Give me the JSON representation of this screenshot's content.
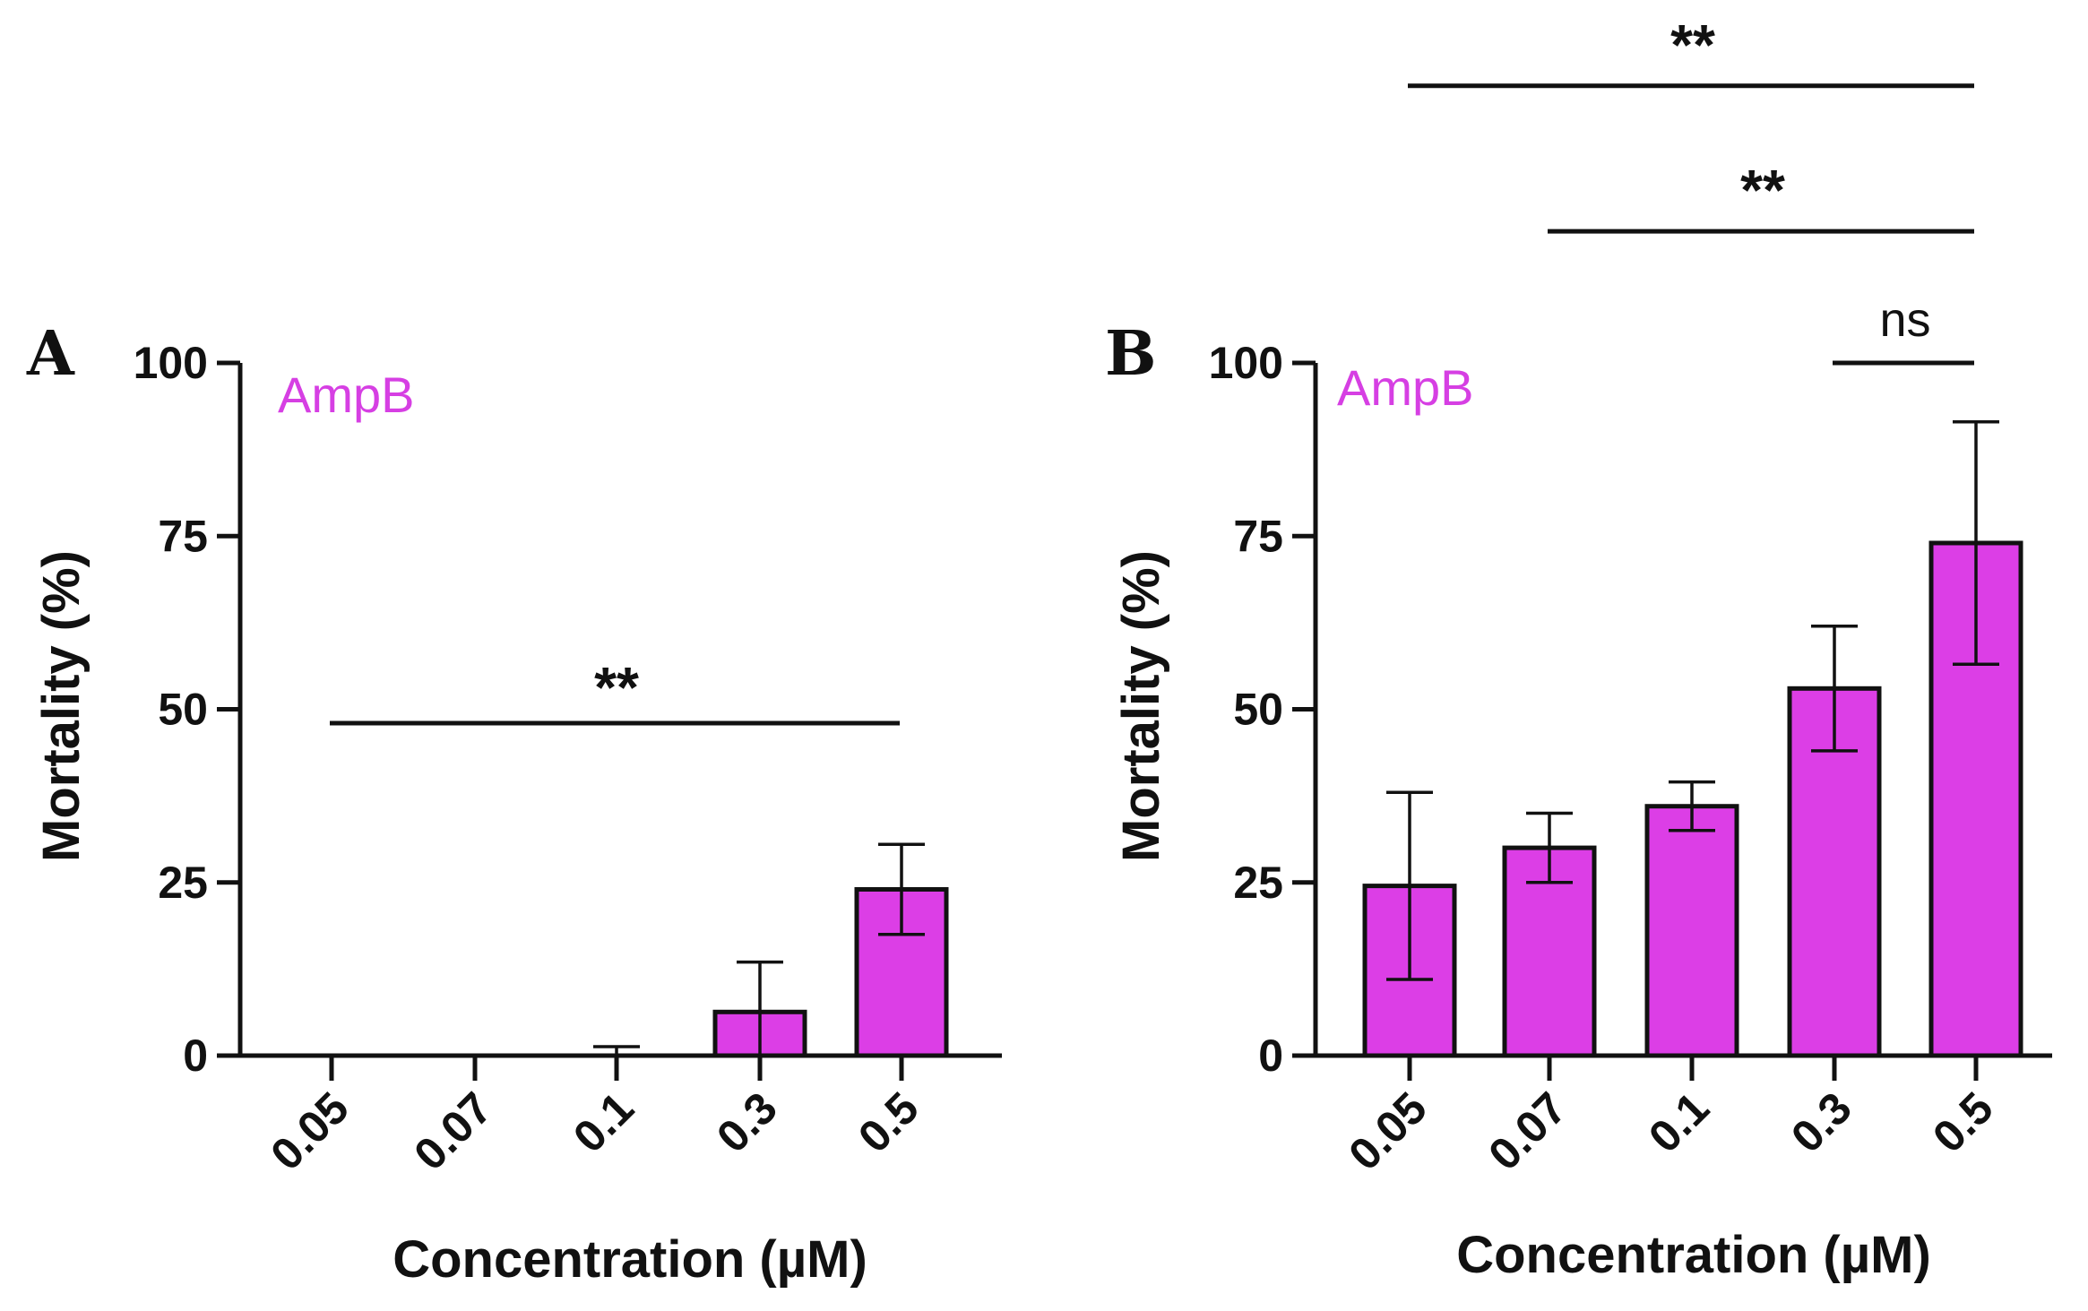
{
  "colors": {
    "bar": "#dc3ee6",
    "label": "#d63fe3",
    "ink": "#111111"
  },
  "chart_data": [
    {
      "panel": "A",
      "type": "bar",
      "series_label": "AmpB",
      "title": "",
      "xlabel": "Concentration (µM)",
      "ylabel": "Mortality (%)",
      "ylim": [
        0,
        100
      ],
      "yticks": [
        "0",
        "25",
        "50",
        "75",
        "100"
      ],
      "categories": [
        "0.05",
        "0.07",
        "0.1",
        "0.3",
        "0.5"
      ],
      "values": [
        0,
        0,
        0,
        6.3,
        24.0
      ],
      "errors": [
        0,
        0,
        1.3,
        7.2,
        6.5
      ],
      "significance": [
        {
          "from": "0.05",
          "to": "0.5",
          "level": 48,
          "label": "**"
        }
      ]
    },
    {
      "panel": "B",
      "type": "bar",
      "series_label": "AmpB",
      "title": "",
      "xlabel": "Concentration (µM)",
      "ylabel": "Mortality (%)",
      "ylim": [
        0,
        100
      ],
      "yticks": [
        "0",
        "25",
        "50",
        "75",
        "100"
      ],
      "categories": [
        "0.05",
        "0.07",
        "0.1",
        "0.3",
        "0.5"
      ],
      "values": [
        24.5,
        30.0,
        36.0,
        53.0,
        74.0
      ],
      "errors": [
        13.5,
        5.0,
        3.5,
        9.0,
        17.5
      ],
      "significance": [
        {
          "from": "0.05",
          "to": "0.5",
          "level": 140,
          "label": "**"
        },
        {
          "from": "0.07",
          "to": "0.5",
          "level": 119,
          "label": "**"
        },
        {
          "from": "0.3",
          "to": "0.5",
          "level": 100,
          "label": "ns"
        }
      ]
    }
  ]
}
